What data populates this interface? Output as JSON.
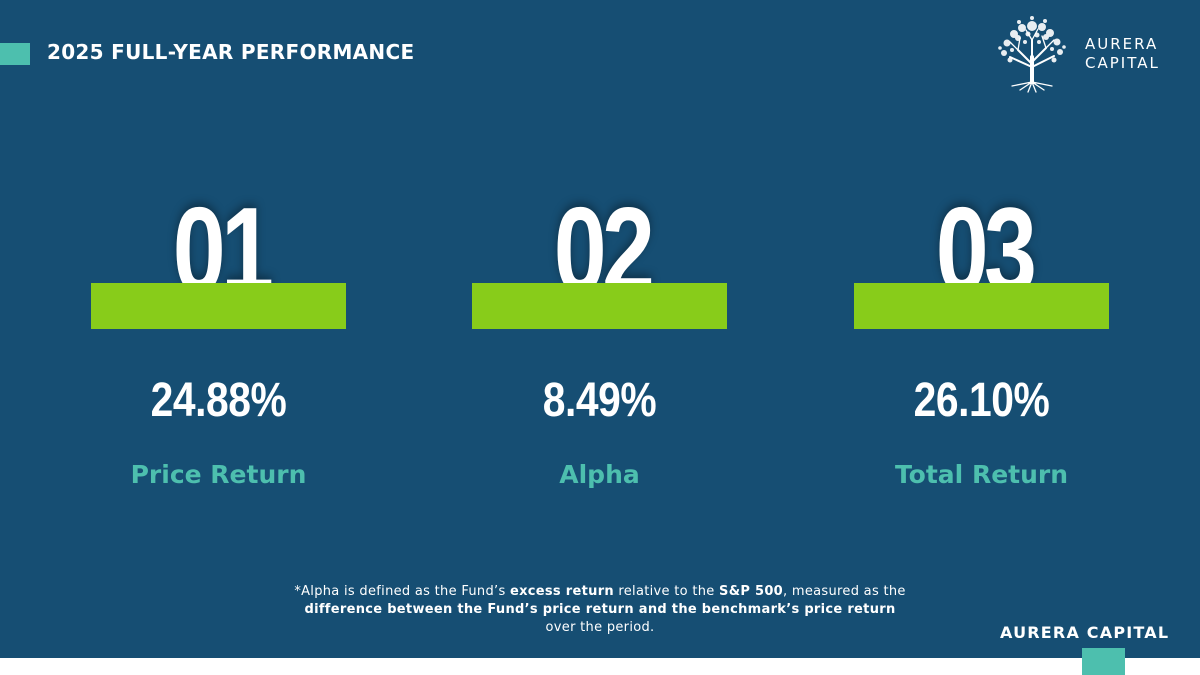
{
  "header": {
    "title": "2025 FULL-YEAR PERFORMANCE"
  },
  "logo": {
    "line1": "AURERA",
    "line2": "CAPITAL",
    "icon": "tree-icon"
  },
  "metrics": [
    {
      "number": "01",
      "value": "24.88%",
      "label": "Price Return"
    },
    {
      "number": "02",
      "value": "8.49%",
      "label": "Alpha"
    },
    {
      "number": "03",
      "value": "26.10%",
      "label": "Total Return"
    }
  ],
  "footnote": {
    "p1": "*Alpha is defined as the Fund’s ",
    "b1": "excess return",
    "p2": " relative to the ",
    "b2": "S&P 500",
    "p3": ", measured as the ",
    "b3": "difference between the Fund’s price return and the benchmark’s price return",
    "p4": " over the period."
  },
  "footer": {
    "brand": "AURERA CAPITAL"
  },
  "colors": {
    "background": "#164e73",
    "accent_teal": "#4dbfae",
    "accent_green": "#88cc1a",
    "text": "#ffffff"
  }
}
